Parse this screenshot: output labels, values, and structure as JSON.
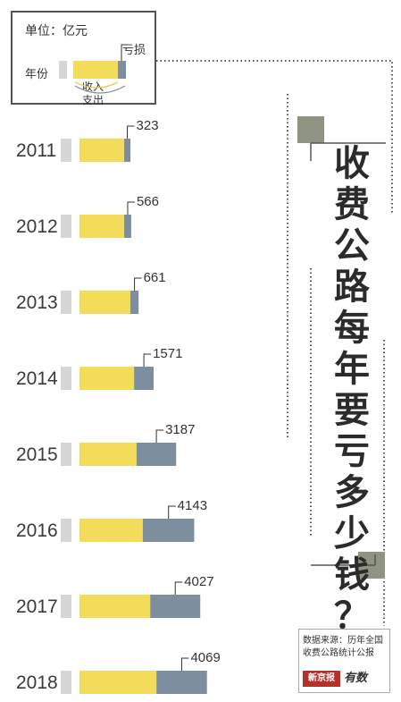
{
  "legend": {
    "unit": "单位：亿元",
    "year_label": "年份",
    "loss_label": "亏损",
    "income_label": "收入",
    "expense_label": "支出"
  },
  "title_chars": [
    "收",
    "费",
    "公",
    "路",
    "每",
    "年",
    "要",
    "亏",
    "多",
    "少",
    "钱",
    "？"
  ],
  "source": {
    "text": "数据来源：历年全国收费公路统计公报",
    "logo_red": "新京报",
    "logo_text": "有数"
  },
  "colors": {
    "income": "#f2dc5a",
    "loss": "#7d8f9e",
    "year_marker": "#d6d6d6",
    "accent_square": "#8f9382",
    "dotted": "#555555"
  },
  "chart_data": {
    "type": "bar",
    "categories": [
      "2011",
      "2012",
      "2013",
      "2014",
      "2015",
      "2016",
      "2017",
      "2018"
    ],
    "series": [
      {
        "name": "收入",
        "values": [
          3600,
          3600,
          4100,
          4400,
          4600,
          5100,
          5700,
          6200
        ]
      },
      {
        "name": "亏损",
        "values": [
          323,
          566,
          661,
          1571,
          3187,
          4143,
          4027,
          4069
        ]
      }
    ],
    "labels": [
      "323",
      "566",
      "661",
      "1571",
      "3187",
      "4143",
      "4027",
      "4069"
    ],
    "ylabel": "",
    "xlabel": ""
  }
}
